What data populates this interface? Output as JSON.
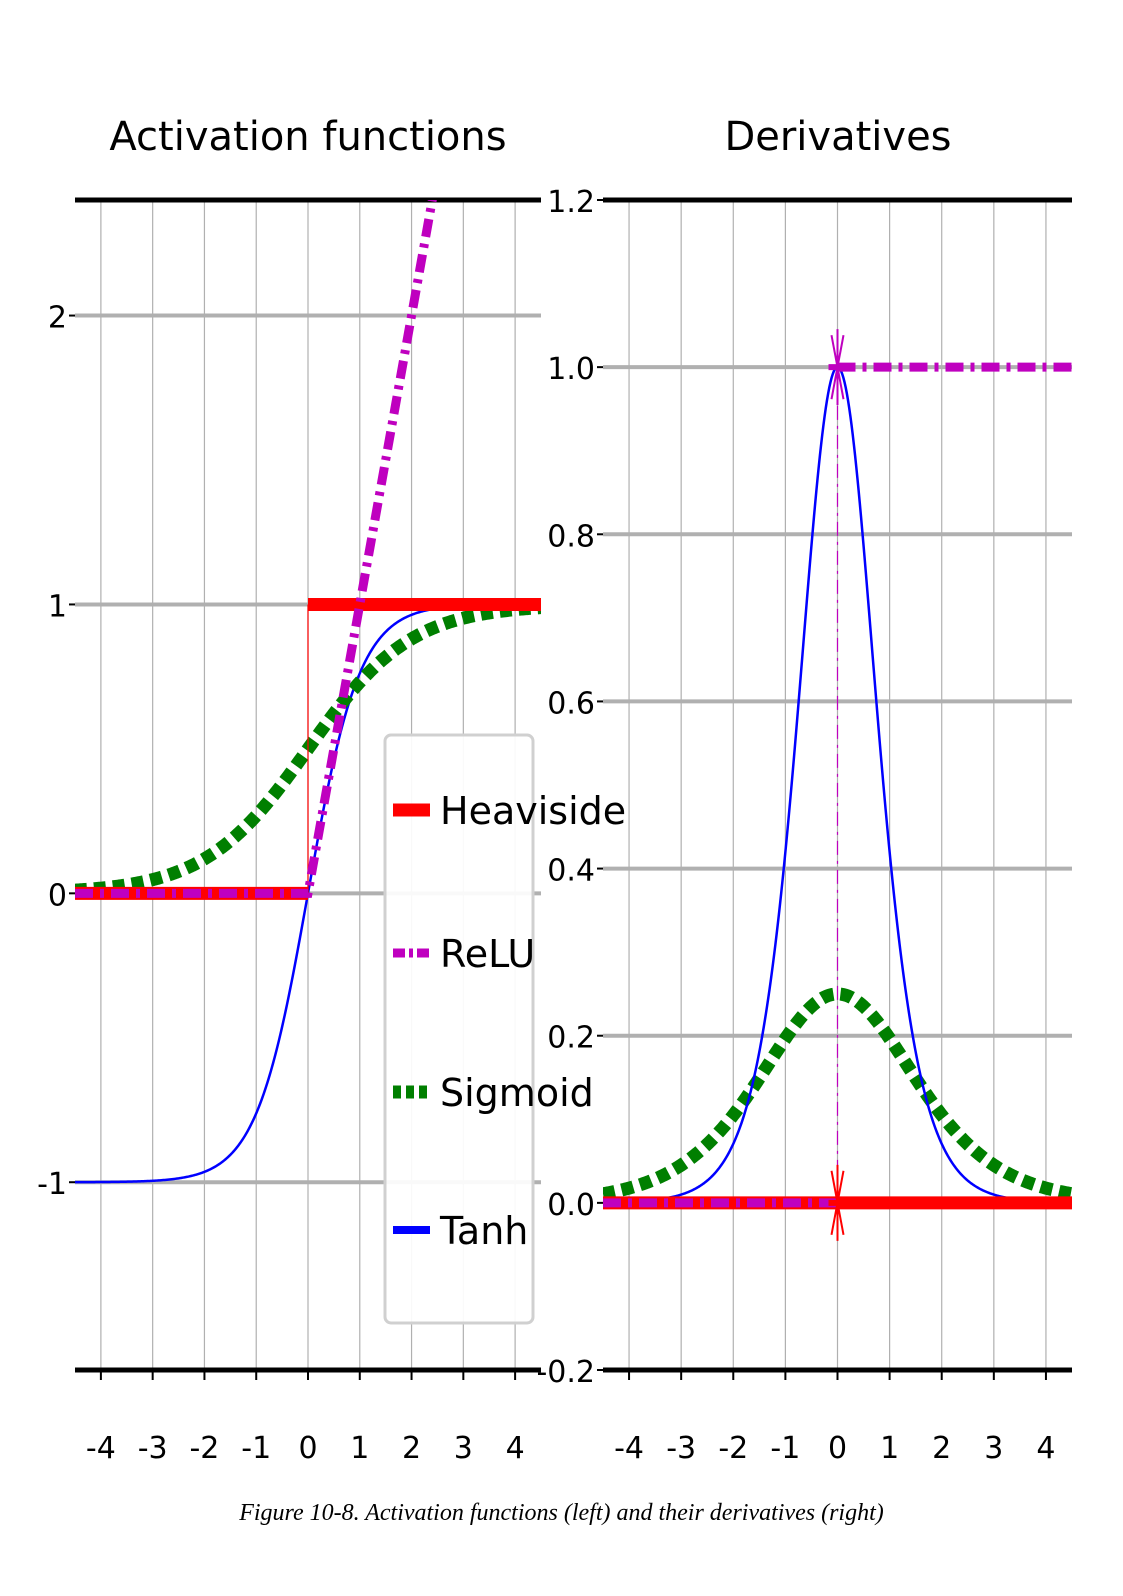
{
  "caption": "Figure 10-8. Activation functions (left) and their derivatives (right)",
  "colors": {
    "heaviside": "#ff0000",
    "relu": "#bf00bf",
    "sigmoid": "#007f00",
    "tanh": "#0000ff",
    "grid": "#b0b0b0"
  },
  "chart_data": [
    {
      "type": "line",
      "title": "Activation functions",
      "xlabel": "",
      "ylabel": "",
      "xlim": [
        -4.5,
        4.5
      ],
      "ylim": [
        -1.65,
        2.4
      ],
      "grid": true,
      "x_ticks": [
        -4,
        -3,
        -2,
        -1,
        0,
        1,
        2,
        3,
        4
      ],
      "x_tick_labels": [
        "-4",
        "-3",
        "-2",
        "-1",
        "0",
        "1",
        "2",
        "3",
        "4"
      ],
      "y_ticks": [
        -1,
        0,
        1,
        2
      ],
      "y_tick_labels": [
        "-1",
        "0",
        "1",
        "2"
      ],
      "legend_position": "center-right",
      "series": [
        {
          "name": "Heaviside",
          "function": "heaviside",
          "style": "solid-thick"
        },
        {
          "name": "ReLU",
          "function": "relu",
          "style": "dash-dot"
        },
        {
          "name": "Sigmoid",
          "function": "sigmoid",
          "style": "dashed-thick"
        },
        {
          "name": "Tanh",
          "function": "tanh",
          "style": "solid-thin"
        }
      ]
    },
    {
      "type": "line",
      "title": "Derivatives",
      "xlabel": "",
      "ylabel": "",
      "xlim": [
        -4.5,
        4.5
      ],
      "ylim": [
        -0.2,
        1.2
      ],
      "grid": true,
      "x_ticks": [
        -4,
        -3,
        -2,
        -1,
        0,
        1,
        2,
        3,
        4
      ],
      "x_tick_labels": [
        "-4",
        "-3",
        "-2",
        "-1",
        "0",
        "1",
        "2",
        "3",
        "4"
      ],
      "y_ticks": [
        -0.2,
        0.0,
        0.2,
        0.4,
        0.6,
        0.8,
        1.0,
        1.2
      ],
      "y_tick_labels": [
        "-0.2",
        "0.0",
        "0.2",
        "0.4",
        "0.6",
        "0.8",
        "1.0",
        "1.2"
      ],
      "series": [
        {
          "name": "Heaviside",
          "function": "d_heaviside",
          "style": "solid-thick"
        },
        {
          "name": "ReLU",
          "function": "d_relu",
          "style": "dash-dot"
        },
        {
          "name": "Sigmoid",
          "function": "d_sigmoid",
          "style": "dashed-thick"
        },
        {
          "name": "Tanh",
          "function": "d_tanh",
          "style": "solid-thin"
        }
      ],
      "markers": [
        {
          "x": 0,
          "y": 1.0,
          "series": "ReLU"
        },
        {
          "x": 0,
          "y": 0.0,
          "series": "Heaviside"
        }
      ]
    }
  ]
}
